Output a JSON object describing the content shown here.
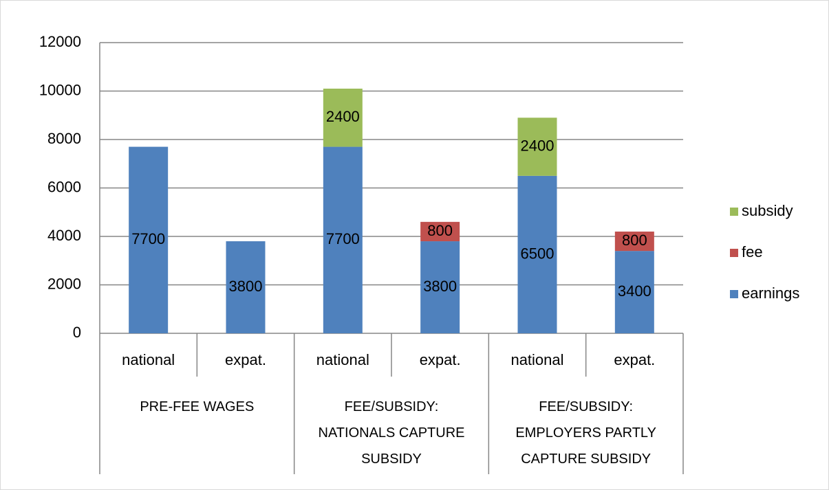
{
  "chart_data": {
    "type": "stacked_bar",
    "groups": [
      {
        "name": "PRE-FEE WAGES",
        "categories": [
          "national",
          "expat."
        ]
      },
      {
        "name": "FEE/SUBSIDY: NATIONALS CAPTURE SUBSIDY",
        "categories": [
          "national",
          "expat."
        ]
      },
      {
        "name": "FEE/SUBSIDY: EMPLOYERS PARTLY CAPTURE SUBSIDY",
        "categories": [
          "national",
          "expat."
        ]
      }
    ],
    "series": [
      {
        "name": "earnings",
        "color": "#4f81bd",
        "values": [
          7700,
          3800,
          7700,
          3800,
          6500,
          3400
        ]
      },
      {
        "name": "fee",
        "color": "#c0504d",
        "values": [
          null,
          null,
          null,
          800,
          null,
          800
        ]
      },
      {
        "name": "subsidy",
        "color": "#9bbb59",
        "values": [
          null,
          null,
          2400,
          null,
          2400,
          null
        ]
      }
    ],
    "ylim": [
      0,
      12000
    ],
    "yticks": [
      0,
      2000,
      4000,
      6000,
      8000,
      10000,
      12000
    ],
    "grid": true,
    "legend": "right",
    "data_labels": true
  }
}
